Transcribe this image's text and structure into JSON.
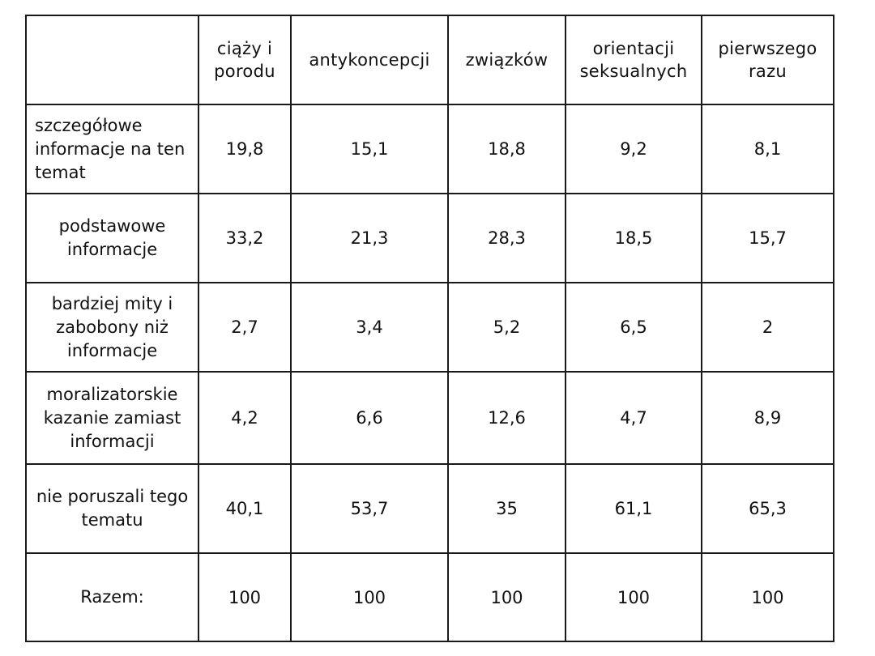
{
  "table": {
    "columns": [
      "ciąży i porodu",
      "antykoncepcji",
      "związków",
      "orientacji seksualnych",
      "pierwszego razu"
    ],
    "rows": [
      {
        "label": "szczegółowe informacje na ten temat",
        "values": [
          "19,8",
          "15,1",
          "18,8",
          "9,2",
          "8,1"
        ]
      },
      {
        "label": "podstawowe informacje",
        "values": [
          "33,2",
          "21,3",
          "28,3",
          "18,5",
          "15,7"
        ]
      },
      {
        "label": "bardziej mity i zabobony niż informacje",
        "values": [
          "2,7",
          "3,4",
          "5,2",
          "6,5",
          "2"
        ]
      },
      {
        "label": "moralizatorskie kazanie zamiast informacji",
        "values": [
          "4,2",
          "6,6",
          "12,6",
          "4,7",
          "8,9"
        ]
      },
      {
        "label": "nie poruszali tego tematu",
        "values": [
          "40,1",
          "53,7",
          "35",
          "61,1",
          "65,3"
        ]
      },
      {
        "label": "Razem:",
        "values": [
          "100",
          "100",
          "100",
          "100",
          "100"
        ]
      }
    ]
  }
}
